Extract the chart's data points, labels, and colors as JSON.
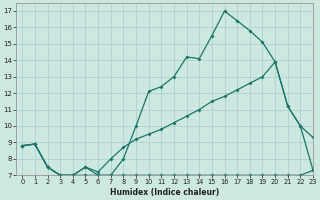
{
  "xlabel": "Humidex (Indice chaleur)",
  "background_color": "#cce8e0",
  "grid_color": "#aacccc",
  "line_color": "#1a7868",
  "xlim": [
    -0.5,
    23
  ],
  "ylim": [
    7,
    17.5
  ],
  "xticks": [
    0,
    1,
    2,
    3,
    4,
    5,
    6,
    7,
    8,
    9,
    10,
    11,
    12,
    13,
    14,
    15,
    16,
    17,
    18,
    19,
    20,
    21,
    22,
    23
  ],
  "yticks": [
    7,
    8,
    9,
    10,
    11,
    12,
    13,
    14,
    15,
    16,
    17
  ],
  "line1_x": [
    0,
    1,
    2,
    3,
    4,
    5,
    6,
    7,
    8,
    9,
    10,
    11,
    12,
    13,
    14,
    15,
    16,
    17,
    18,
    19,
    20,
    21,
    22,
    23
  ],
  "line1_y": [
    8.8,
    8.9,
    7.5,
    7.0,
    7.0,
    7.5,
    7.0,
    7.0,
    8.0,
    10.0,
    12.1,
    12.4,
    13.0,
    14.2,
    14.1,
    15.5,
    17.0,
    16.4,
    15.8,
    15.1,
    13.9,
    11.2,
    10.0,
    9.3
  ],
  "line2_x": [
    0,
    1,
    2,
    3,
    4,
    5,
    6,
    7,
    8,
    9,
    10,
    11,
    12,
    13,
    14,
    15,
    16,
    17,
    18,
    19,
    20,
    21,
    22,
    23
  ],
  "line2_y": [
    8.8,
    8.9,
    7.5,
    7.0,
    7.0,
    7.0,
    7.0,
    7.0,
    7.0,
    7.0,
    7.0,
    7.0,
    7.0,
    7.0,
    7.0,
    7.0,
    7.0,
    7.0,
    7.0,
    7.0,
    7.0,
    7.0,
    7.0,
    7.3
  ],
  "line3_x": [
    0,
    1,
    2,
    3,
    4,
    5,
    6,
    7,
    8,
    9,
    10,
    11,
    12,
    13,
    14,
    15,
    16,
    17,
    18,
    19,
    20,
    21,
    22,
    23
  ],
  "line3_y": [
    8.8,
    8.9,
    7.5,
    7.0,
    7.0,
    7.5,
    7.2,
    8.0,
    8.7,
    9.2,
    9.5,
    9.8,
    10.2,
    10.6,
    11.0,
    11.5,
    11.8,
    12.2,
    12.6,
    13.0,
    13.9,
    11.2,
    10.0,
    7.3
  ],
  "xlabel_fontsize": 5.5,
  "tick_fontsize": 4.8,
  "linewidth": 0.9,
  "markersize": 2.0
}
